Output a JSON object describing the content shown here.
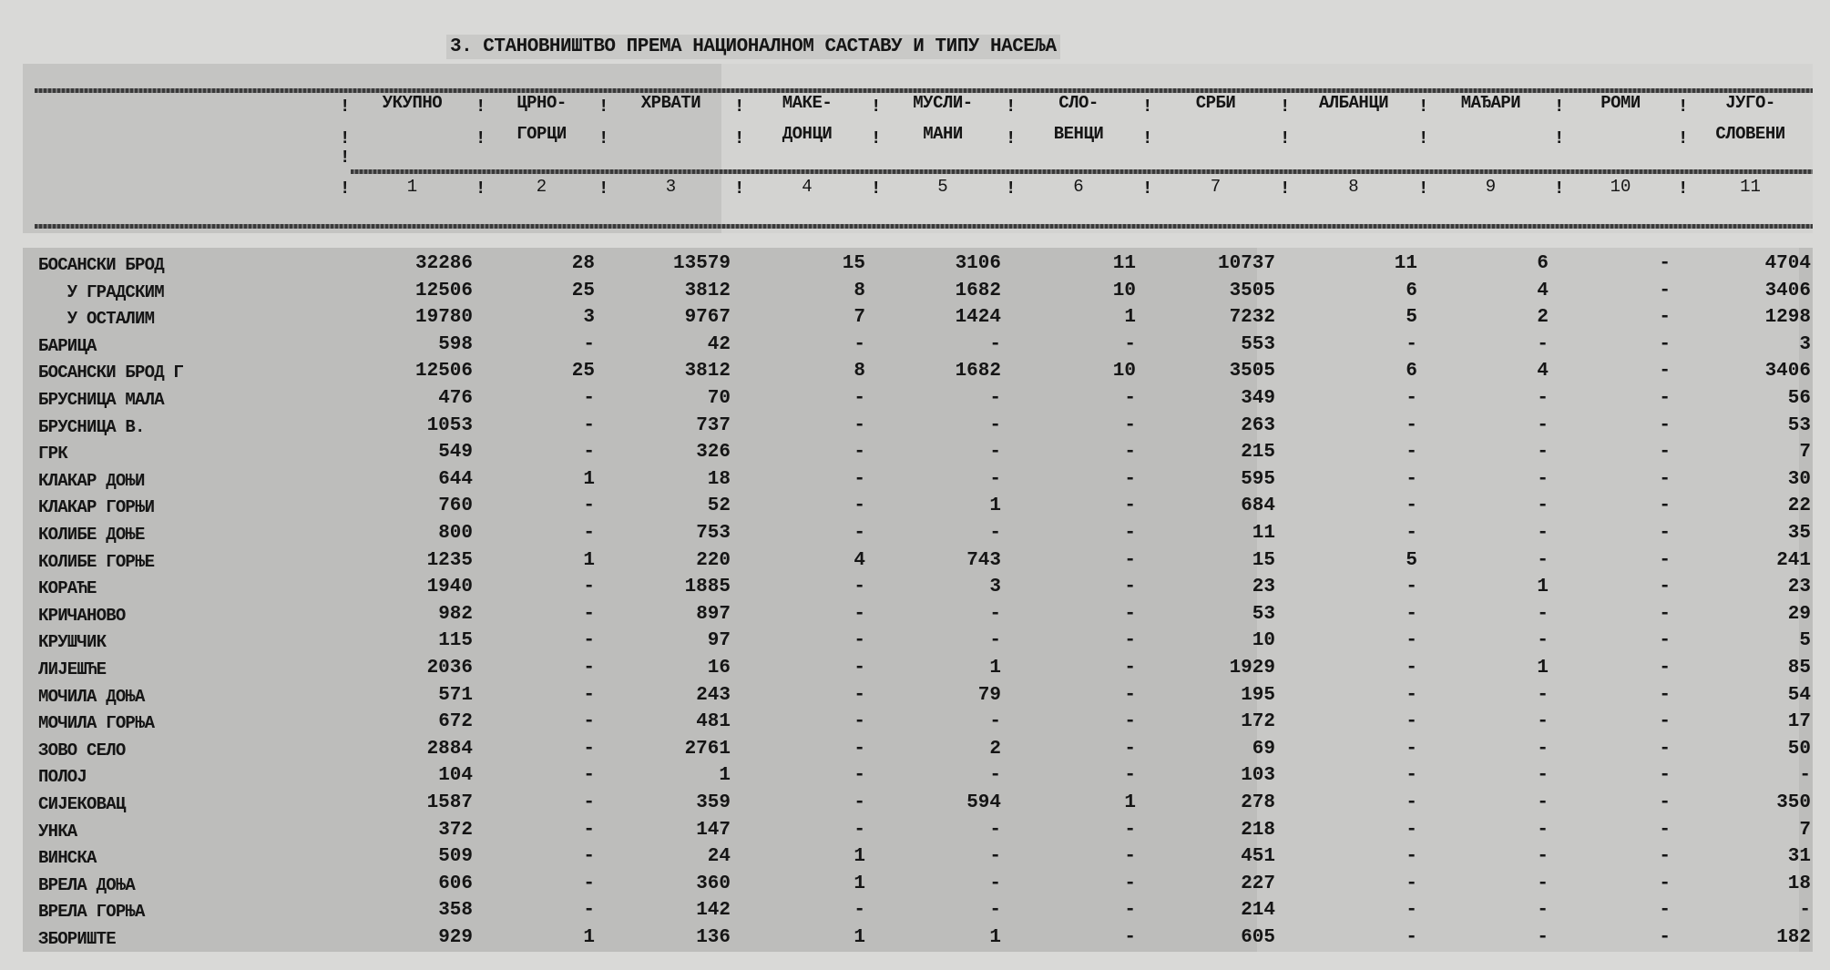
{
  "title": "3. СТАНОВНИШТВО ПРЕМА НАЦИОНАЛНОМ САСТАВУ И ТИПУ НАСЕЉА",
  "columns": [
    {
      "line1": "УКУПНО",
      "line2": "",
      "number": "1"
    },
    {
      "line1": "ЦРНО-",
      "line2": "ГОРЦИ",
      "number": "2"
    },
    {
      "line1": "ХРВАТИ",
      "line2": "",
      "number": "3"
    },
    {
      "line1": "МАКЕ-",
      "line2": "ДОНЦИ",
      "number": "4"
    },
    {
      "line1": "МУСЛИ-",
      "line2": "МАНИ",
      "number": "5"
    },
    {
      "line1": "СЛО-",
      "line2": "ВЕНЦИ",
      "number": "6"
    },
    {
      "line1": "СРБИ",
      "line2": "",
      "number": "7"
    },
    {
      "line1": "АЛБАНЦИ",
      "line2": "",
      "number": "8"
    },
    {
      "line1": "МАЂАРИ",
      "line2": "",
      "number": "9"
    },
    {
      "line1": "РОМИ",
      "line2": "",
      "number": "10"
    },
    {
      "line1": "ЈУГО-",
      "line2": "СЛОВЕНИ",
      "number": "11"
    }
  ],
  "rows": [
    {
      "name": "БОСАНСКИ БРОД",
      "values": [
        "32286",
        "28",
        "13579",
        "15",
        "3106",
        "11",
        "10737",
        "11",
        "6",
        "-",
        "4704"
      ]
    },
    {
      "name": "   У ГРАДСКИМ",
      "values": [
        "12506",
        "25",
        "3812",
        "8",
        "1682",
        "10",
        "3505",
        "6",
        "4",
        "-",
        "3406"
      ]
    },
    {
      "name": "   У ОСТАЛИМ",
      "values": [
        "19780",
        "3",
        "9767",
        "7",
        "1424",
        "1",
        "7232",
        "5",
        "2",
        "-",
        "1298"
      ]
    },
    {
      "name": "БАРИЦА",
      "values": [
        "598",
        "-",
        "42",
        "-",
        "-",
        "-",
        "553",
        "-",
        "-",
        "-",
        "3"
      ]
    },
    {
      "name": "БОСАНСКИ БРОД Г",
      "values": [
        "12506",
        "25",
        "3812",
        "8",
        "1682",
        "10",
        "3505",
        "6",
        "4",
        "-",
        "3406"
      ]
    },
    {
      "name": "БРУСНИЦА МАЛА",
      "values": [
        "476",
        "-",
        "70",
        "-",
        "-",
        "-",
        "349",
        "-",
        "-",
        "-",
        "56"
      ]
    },
    {
      "name": "БРУСНИЦА В.",
      "values": [
        "1053",
        "-",
        "737",
        "-",
        "-",
        "-",
        "263",
        "-",
        "-",
        "-",
        "53"
      ]
    },
    {
      "name": "ГРК",
      "values": [
        "549",
        "-",
        "326",
        "-",
        "-",
        "-",
        "215",
        "-",
        "-",
        "-",
        "7"
      ]
    },
    {
      "name": "КЛАКАР ДОЊИ",
      "values": [
        "644",
        "1",
        "18",
        "-",
        "-",
        "-",
        "595",
        "-",
        "-",
        "-",
        "30"
      ]
    },
    {
      "name": "КЛАКАР ГОРЊИ",
      "values": [
        "760",
        "-",
        "52",
        "-",
        "1",
        "-",
        "684",
        "-",
        "-",
        "-",
        "22"
      ]
    },
    {
      "name": "КОЛИБЕ ДОЊЕ",
      "values": [
        "800",
        "-",
        "753",
        "-",
        "-",
        "-",
        "11",
        "-",
        "-",
        "-",
        "35"
      ]
    },
    {
      "name": "КОЛИБЕ ГОРЊЕ",
      "values": [
        "1235",
        "1",
        "220",
        "4",
        "743",
        "-",
        "15",
        "5",
        "-",
        "-",
        "241"
      ]
    },
    {
      "name": "КОРАЋЕ",
      "values": [
        "1940",
        "-",
        "1885",
        "-",
        "3",
        "-",
        "23",
        "-",
        "1",
        "-",
        "23"
      ]
    },
    {
      "name": "КРИЧАНОВО",
      "values": [
        "982",
        "-",
        "897",
        "-",
        "-",
        "-",
        "53",
        "-",
        "-",
        "-",
        "29"
      ]
    },
    {
      "name": "КРУШЧИК",
      "values": [
        "115",
        "-",
        "97",
        "-",
        "-",
        "-",
        "10",
        "-",
        "-",
        "-",
        "5"
      ]
    },
    {
      "name": "ЛИЈЕШЋЕ",
      "values": [
        "2036",
        "-",
        "16",
        "-",
        "1",
        "-",
        "1929",
        "-",
        "1",
        "-",
        "85"
      ]
    },
    {
      "name": "МОЧИЛА ДОЊА",
      "values": [
        "571",
        "-",
        "243",
        "-",
        "79",
        "-",
        "195",
        "-",
        "-",
        "-",
        "54"
      ]
    },
    {
      "name": "МОЧИЛА ГОРЊА",
      "values": [
        "672",
        "-",
        "481",
        "-",
        "-",
        "-",
        "172",
        "-",
        "-",
        "-",
        "17"
      ]
    },
    {
      "name": "ЗОВО СЕЛО",
      "values": [
        "2884",
        "-",
        "2761",
        "-",
        "2",
        "-",
        "69",
        "-",
        "-",
        "-",
        "50"
      ]
    },
    {
      "name": "ПОЛОЈ",
      "values": [
        "104",
        "-",
        "1",
        "-",
        "-",
        "-",
        "103",
        "-",
        "-",
        "-",
        "-"
      ]
    },
    {
      "name": "СИЈЕКОВАЦ",
      "values": [
        "1587",
        "-",
        "359",
        "-",
        "594",
        "1",
        "278",
        "-",
        "-",
        "-",
        "350"
      ]
    },
    {
      "name": "УНКА",
      "values": [
        "372",
        "-",
        "147",
        "-",
        "-",
        "-",
        "218",
        "-",
        "-",
        "-",
        "7"
      ]
    },
    {
      "name": "ВИНСКА",
      "values": [
        "509",
        "-",
        "24",
        "1",
        "-",
        "-",
        "451",
        "-",
        "-",
        "-",
        "31"
      ]
    },
    {
      "name": "ВРЕЛА ДОЊА",
      "values": [
        "606",
        "-",
        "360",
        "1",
        "-",
        "-",
        "227",
        "-",
        "-",
        "-",
        "18"
      ]
    },
    {
      "name": "ВРЕЛА ГОРЊА",
      "values": [
        "358",
        "-",
        "142",
        "-",
        "-",
        "-",
        "214",
        "-",
        "-",
        "-",
        "-"
      ]
    },
    {
      "name": "ЗБОРИШТЕ",
      "values": [
        "929",
        "1",
        "136",
        "1",
        "1",
        "-",
        "605",
        "-",
        "-",
        "-",
        "182"
      ]
    }
  ]
}
